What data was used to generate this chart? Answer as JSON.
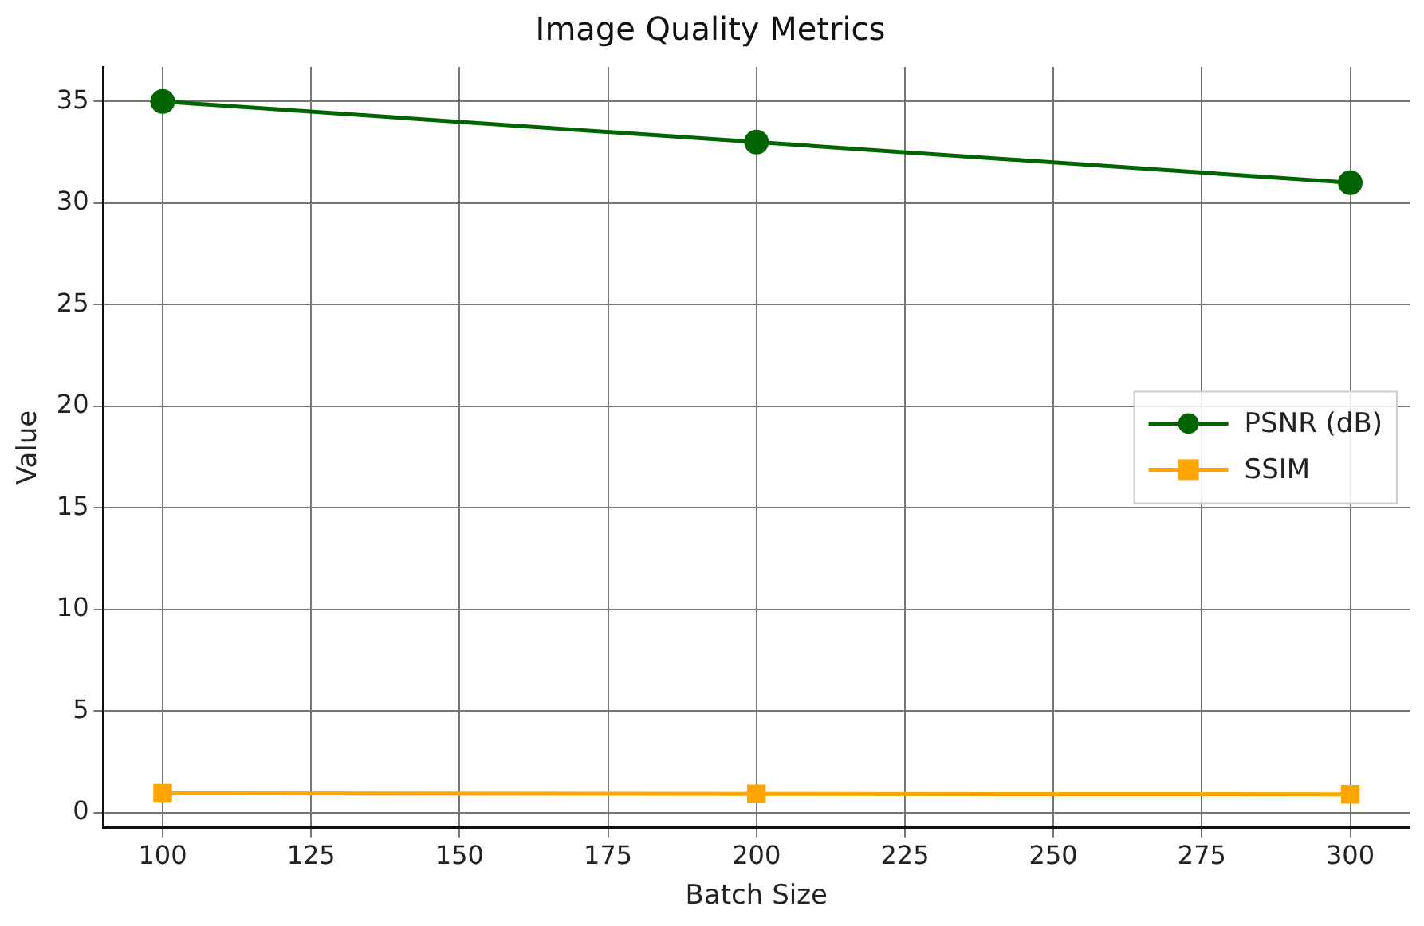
{
  "chart_data": {
    "type": "line",
    "title": "Image Quality Metrics",
    "xlabel": "Batch Size",
    "ylabel": "Value",
    "x": [
      100,
      200,
      300
    ],
    "series": [
      {
        "name": "PSNR (dB)",
        "color": "#006400",
        "marker": "circle",
        "values": [
          35,
          33,
          31
        ]
      },
      {
        "name": "SSIM",
        "color": "#ffa500",
        "marker": "square",
        "values": [
          0.95,
          0.92,
          0.9
        ]
      }
    ],
    "xlim": [
      90,
      310
    ],
    "xticks": [
      100,
      125,
      150,
      175,
      200,
      225,
      250,
      275,
      300
    ],
    "ylim": [
      -0.75,
      36.7
    ],
    "yticks": [
      0,
      5,
      10,
      15,
      20,
      25,
      30,
      35
    ],
    "grid": true,
    "legend": "right",
    "line_style": "solid"
  }
}
